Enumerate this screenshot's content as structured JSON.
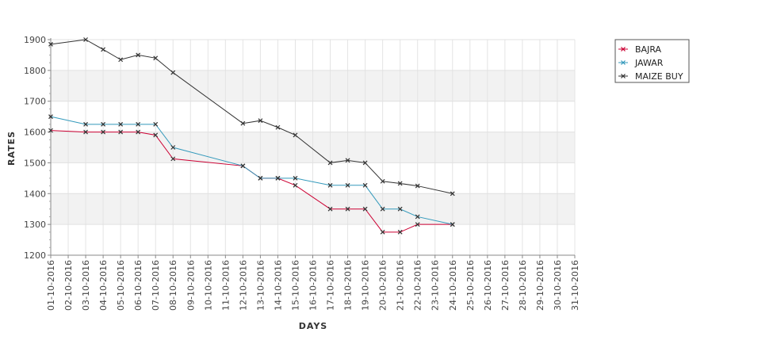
{
  "chart_data": {
    "type": "line",
    "title": "",
    "xlabel": "DAYS",
    "ylabel": "RATES",
    "ylim": [
      1200,
      1900
    ],
    "y_ticks": [
      1200,
      1300,
      1400,
      1500,
      1600,
      1700,
      1800,
      1900
    ],
    "grid": true,
    "legend_position": "top-right",
    "x": [
      "01-10-2016",
      "02-10-2016",
      "03-10-2016",
      "04-10-2016",
      "05-10-2016",
      "06-10-2016",
      "07-10-2016",
      "08-10-2016",
      "09-10-2016",
      "10-10-2016",
      "11-10-2016",
      "12-10-2016",
      "13-10-2016",
      "14-10-2016",
      "15-10-2016",
      "16-10-2016",
      "17-10-2016",
      "18-10-2016",
      "19-10-2016",
      "20-10-2016",
      "21-10-2016",
      "22-10-2016",
      "23-10-2016",
      "24-10-2016",
      "25-10-2016",
      "26-10-2016",
      "27-10-2016",
      "28-10-2016",
      "29-10-2016",
      "30-10-2016",
      "31-10-2016"
    ],
    "series": [
      {
        "name": "BAJRA",
        "color": "#cc0033",
        "points": [
          [
            "01-10-2016",
            1605
          ],
          [
            "03-10-2016",
            1600
          ],
          [
            "04-10-2016",
            1600
          ],
          [
            "05-10-2016",
            1600
          ],
          [
            "06-10-2016",
            1600
          ],
          [
            "07-10-2016",
            1590
          ],
          [
            "08-10-2016",
            1513
          ],
          [
            "12-10-2016",
            1490
          ],
          [
            "13-10-2016",
            1450
          ],
          [
            "14-10-2016",
            1450
          ],
          [
            "15-10-2016",
            1427
          ],
          [
            "17-10-2016",
            1350
          ],
          [
            "18-10-2016",
            1350
          ],
          [
            "19-10-2016",
            1350
          ],
          [
            "20-10-2016",
            1275
          ],
          [
            "21-10-2016",
            1275
          ],
          [
            "22-10-2016",
            1300
          ],
          [
            "24-10-2016",
            1300
          ]
        ]
      },
      {
        "name": "JAWAR",
        "color": "#3399bb",
        "points": [
          [
            "01-10-2016",
            1650
          ],
          [
            "03-10-2016",
            1625
          ],
          [
            "04-10-2016",
            1625
          ],
          [
            "05-10-2016",
            1625
          ],
          [
            "06-10-2016",
            1625
          ],
          [
            "07-10-2016",
            1625
          ],
          [
            "08-10-2016",
            1550
          ],
          [
            "12-10-2016",
            1490
          ],
          [
            "13-10-2016",
            1450
          ],
          [
            "14-10-2016",
            1450
          ],
          [
            "15-10-2016",
            1450
          ],
          [
            "17-10-2016",
            1427
          ],
          [
            "18-10-2016",
            1427
          ],
          [
            "19-10-2016",
            1427
          ],
          [
            "20-10-2016",
            1350
          ],
          [
            "21-10-2016",
            1350
          ],
          [
            "22-10-2016",
            1325
          ],
          [
            "24-10-2016",
            1300
          ]
        ]
      },
      {
        "name": "MAIZE BUY",
        "color": "#333333",
        "points": [
          [
            "01-10-2016",
            1885
          ],
          [
            "03-10-2016",
            1900
          ],
          [
            "04-10-2016",
            1868
          ],
          [
            "05-10-2016",
            1835
          ],
          [
            "06-10-2016",
            1850
          ],
          [
            "07-10-2016",
            1840
          ],
          [
            "08-10-2016",
            1793
          ],
          [
            "12-10-2016",
            1628
          ],
          [
            "13-10-2016",
            1637
          ],
          [
            "14-10-2016",
            1615
          ],
          [
            "15-10-2016",
            1590
          ],
          [
            "17-10-2016",
            1500
          ],
          [
            "18-10-2016",
            1508
          ],
          [
            "19-10-2016",
            1500
          ],
          [
            "20-10-2016",
            1440
          ],
          [
            "21-10-2016",
            1433
          ],
          [
            "22-10-2016",
            1425
          ],
          [
            "24-10-2016",
            1400
          ]
        ]
      }
    ]
  }
}
